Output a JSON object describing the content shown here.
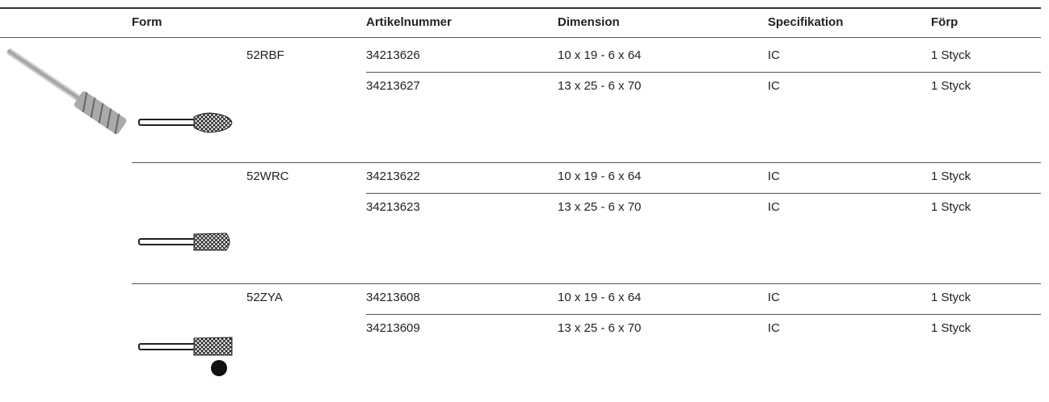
{
  "header": {
    "columns": [
      "Form",
      "Artikelnummer",
      "Dimension",
      "Specifikation",
      "Förp"
    ]
  },
  "groups": [
    {
      "form": "52RBF",
      "rows": [
        [
          "34213626",
          "10 x 19 - 6 x 64",
          "IC",
          "1 Styck"
        ],
        [
          "34213627",
          "13 x 25 - 6 x 70",
          "IC",
          "1 Styck"
        ]
      ]
    },
    {
      "form": "52WRC",
      "rows": [
        [
          "34213622",
          "10 x 19 - 6 x 64",
          "IC",
          "1 Styck"
        ],
        [
          "34213623",
          "13 x 25 - 6 x 70",
          "IC",
          "1 Styck"
        ]
      ]
    },
    {
      "form": "52ZYA",
      "rows": [
        [
          "34213608",
          "10 x 19 - 6 x 64",
          "IC",
          "1 Styck"
        ],
        [
          "34213609",
          "13 x 25 - 6 x 70",
          "IC",
          "1 Styck"
        ]
      ]
    }
  ]
}
